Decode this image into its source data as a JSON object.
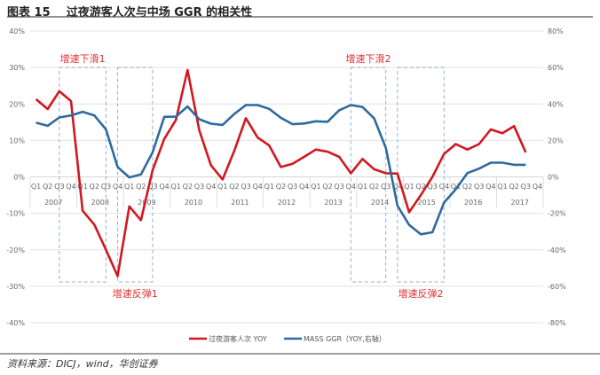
{
  "header": {
    "title": "图表 15    过夜游客人次与中场 GGR 的相关性"
  },
  "footer": {
    "source": "资料来源：DICJ，wind，华创证券"
  },
  "chart_data": {
    "type": "line",
    "title": "",
    "xlabel": "",
    "ylabel": "",
    "years": [
      "2007",
      "2008",
      "2009",
      "2010",
      "2011",
      "2012",
      "2013",
      "2014",
      "2015",
      "2016",
      "2017"
    ],
    "quarters": [
      "Q1",
      "Q2",
      "Q3",
      "Q4"
    ],
    "y_left": {
      "range": [
        -40,
        40
      ],
      "ticks": [
        "-40%",
        "-30%",
        "-20%",
        "-10%",
        "0%",
        "10%",
        "20%",
        "30%",
        "40%"
      ]
    },
    "y_right": {
      "range": [
        -80,
        80
      ],
      "ticks": [
        "-80%",
        "-60%",
        "-40%",
        "-20%",
        "0%",
        "20%",
        "40%",
        "60%",
        "80%"
      ]
    },
    "grid": true,
    "legend_position": "bottom",
    "series": [
      {
        "name": "过夜游客人次 YOY",
        "axis": "left",
        "color": "#d01820",
        "values": [
          21.3,
          18.6,
          23.5,
          20.8,
          -9.3,
          -13.1,
          -20.0,
          -27.2,
          -8.1,
          -11.9,
          1.8,
          10.4,
          15.6,
          29.3,
          12.8,
          3.2,
          -0.7,
          7.1,
          16.1,
          10.8,
          8.6,
          2.7,
          3.6,
          5.5,
          7.5,
          6.9,
          5.5,
          1.0,
          4.9,
          2.1,
          1.0,
          0.9,
          -9.7,
          -5.0,
          0.0,
          6.3,
          9.0,
          7.5,
          9.0,
          13.0,
          12.0,
          13.9,
          6.7,
          null
        ]
      },
      {
        "name": "MASS GGR（YOY,右轴）",
        "axis": "right",
        "color": "#2e6a9e",
        "values": [
          29.7,
          28.0,
          32.6,
          33.7,
          35.7,
          33.7,
          26.0,
          5.4,
          -0.3,
          1.3,
          13.4,
          32.9,
          33.0,
          38.6,
          31.6,
          29.2,
          28.5,
          34.5,
          39.4,
          39.4,
          37.3,
          32.4,
          28.9,
          29.3,
          30.5,
          30.2,
          36.5,
          39.4,
          38.3,
          32.1,
          15.9,
          -15.8,
          -26.3,
          -31.5,
          -30.4,
          -14.1,
          -6.8,
          2.1,
          4.5,
          7.8,
          7.8,
          6.6,
          6.6,
          null
        ]
      }
    ],
    "annotations": [
      {
        "text": "增速下滑1",
        "from": "2007Q3",
        "to": "2008Q3"
      },
      {
        "text": "增速反弹1",
        "from": "2008Q4",
        "to": "2009Q3"
      },
      {
        "text": "增速下滑2",
        "from": "2013Q4",
        "to": "2014Q3"
      },
      {
        "text": "增速反弹2",
        "from": "2014Q4",
        "to": "2015Q4"
      }
    ]
  }
}
